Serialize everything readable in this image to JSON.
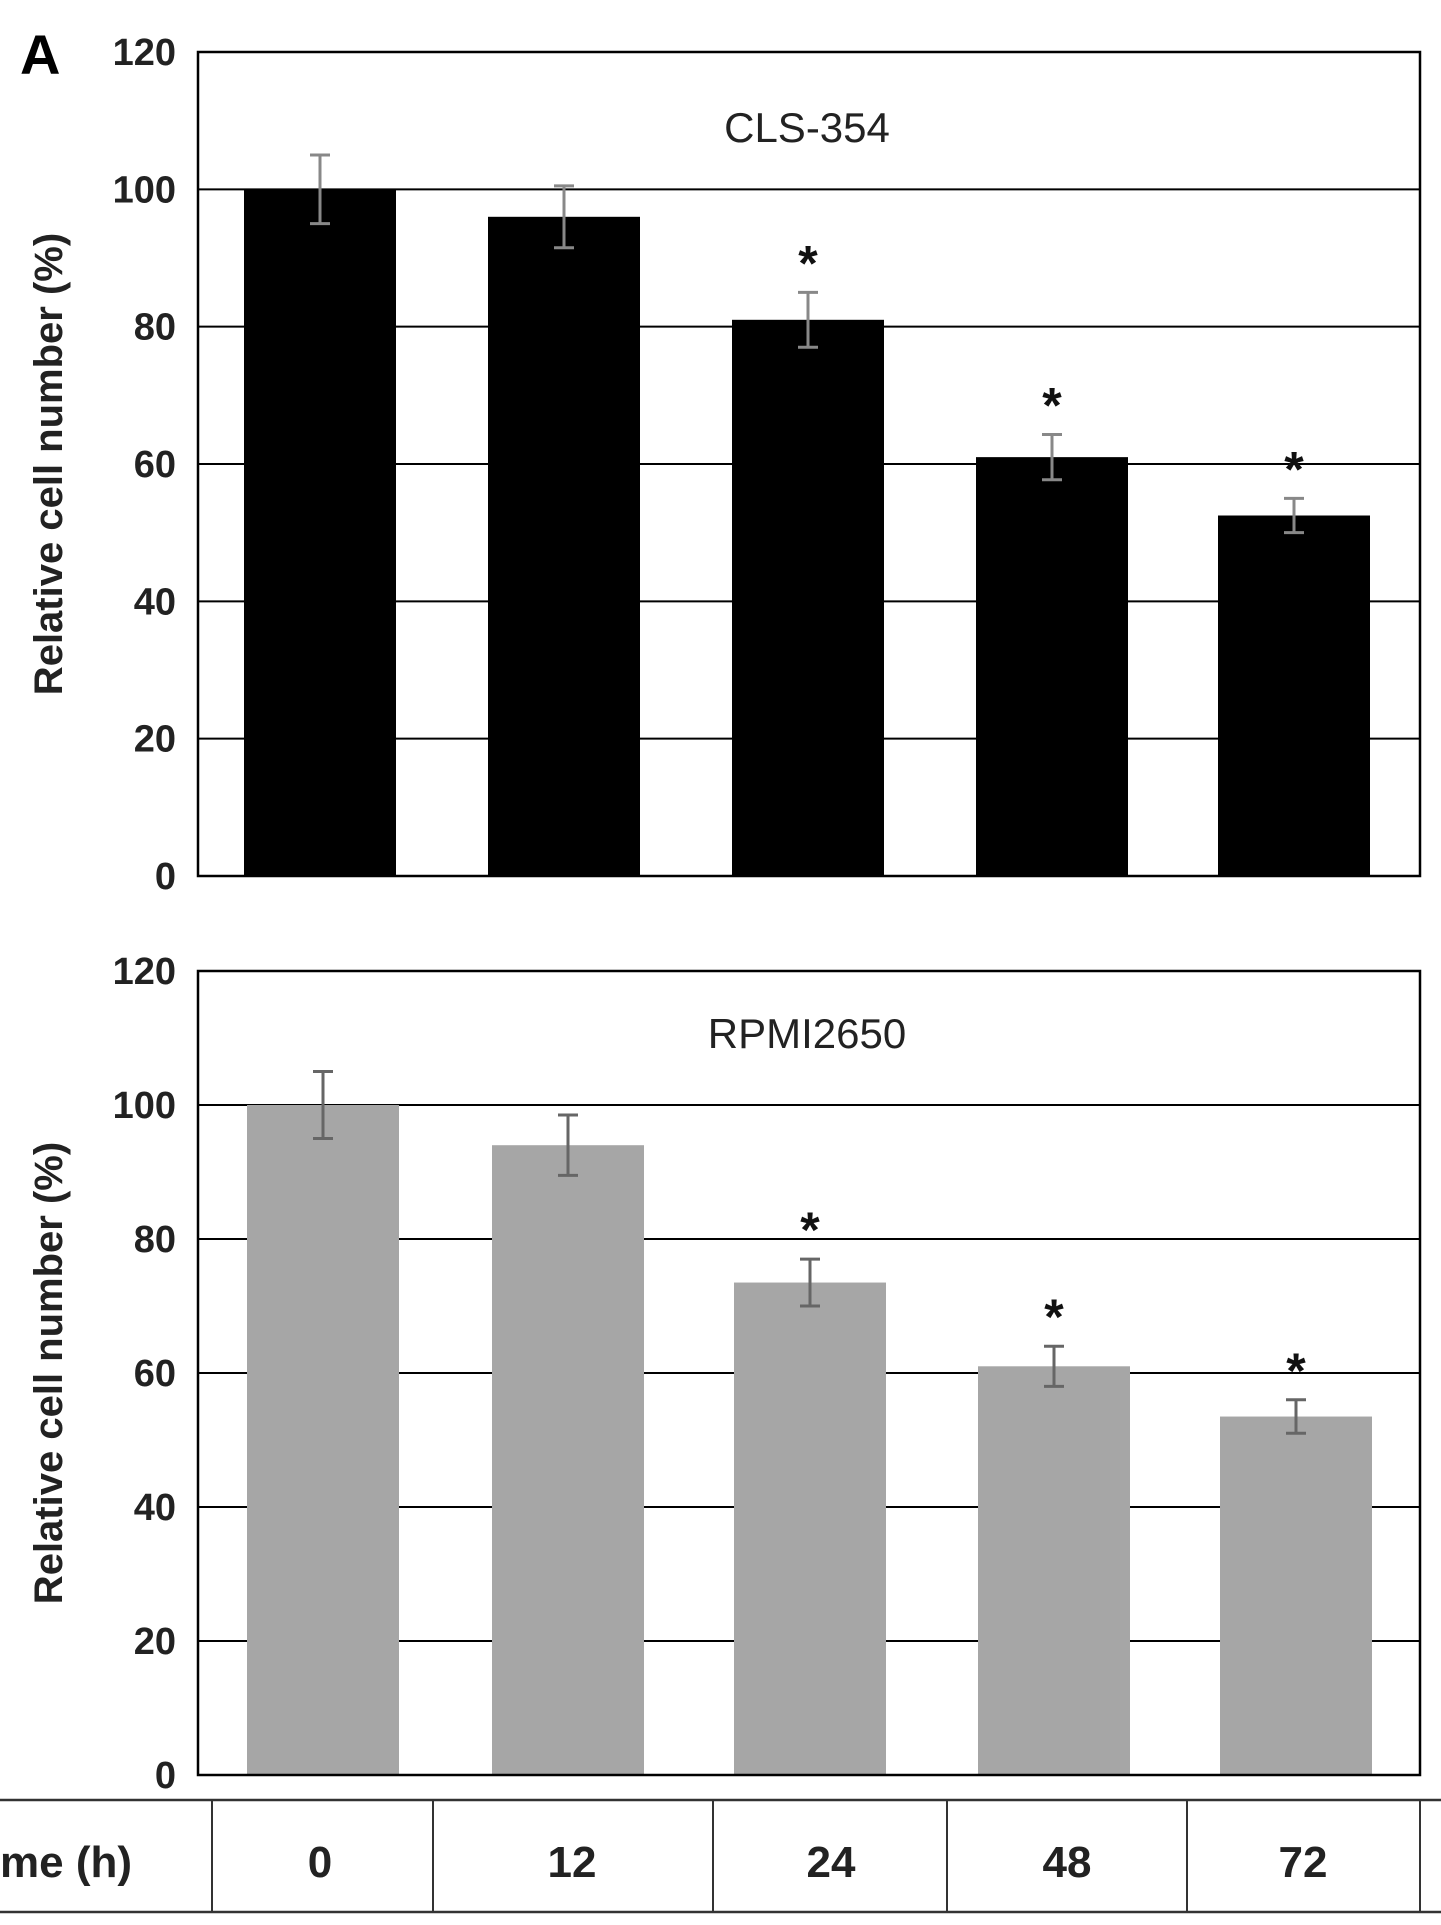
{
  "panel_label": "A",
  "time_table": {
    "header": "me (h)",
    "values": [
      "0",
      "12",
      "24",
      "48",
      "72"
    ]
  },
  "chart_data": [
    {
      "type": "bar",
      "title": "CLS-354",
      "ylabel": "Relative cell number (%)",
      "xlabel": "",
      "categories": [
        "0",
        "12",
        "24",
        "48",
        "72"
      ],
      "values": [
        100,
        96,
        81,
        61,
        52.5
      ],
      "errors": [
        5,
        4.5,
        4,
        3.3,
        2.5
      ],
      "significance": [
        "",
        "",
        "*",
        "*",
        "*"
      ],
      "ylim": [
        0,
        120
      ],
      "yticks": [
        0,
        20,
        40,
        60,
        80,
        100,
        120
      ],
      "grid": true,
      "color": "#000000"
    },
    {
      "type": "bar",
      "title": "RPMI2650",
      "ylabel": "Relative cell number (%)",
      "xlabel": "",
      "categories": [
        "0",
        "12",
        "24",
        "48",
        "72"
      ],
      "values": [
        100,
        94,
        73.5,
        61,
        53.5
      ],
      "errors": [
        5,
        4.5,
        3.5,
        3,
        2.5
      ],
      "significance": [
        "",
        "",
        "*",
        "*",
        "*"
      ],
      "ylim": [
        0,
        120
      ],
      "yticks": [
        0,
        20,
        40,
        60,
        80,
        100,
        120
      ],
      "grid": true,
      "color": "#a6a6a6"
    }
  ]
}
